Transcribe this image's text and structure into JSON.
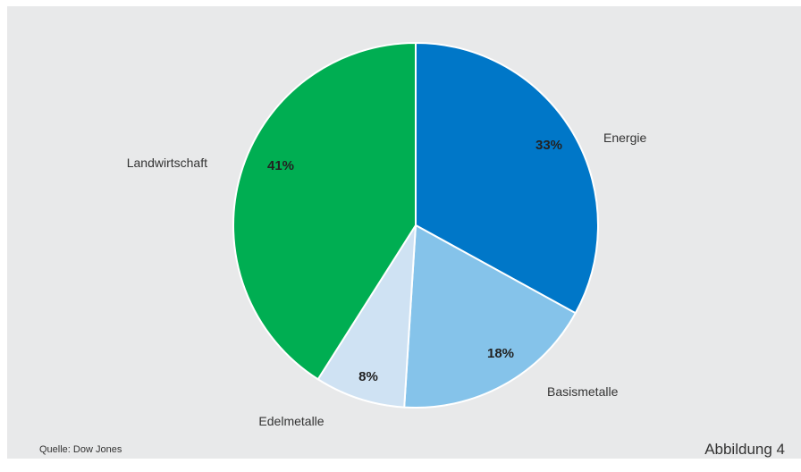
{
  "chart_data": {
    "type": "pie",
    "slices": [
      {
        "label": "Energie",
        "value": 33,
        "value_label": "33%",
        "color": "#0077c8"
      },
      {
        "label": "Basismetalle",
        "value": 18,
        "value_label": "18%",
        "color": "#85c3ea"
      },
      {
        "label": "Edelmetalle",
        "value": 8,
        "value_label": "8%",
        "color": "#cfe2f3"
      },
      {
        "label": "Landwirtschaft",
        "value": 41,
        "value_label": "41%",
        "color": "#00ae52"
      }
    ],
    "start": "12 o'clock",
    "direction": "clockwise",
    "labels": "outside, percentages inside"
  },
  "footer": {
    "source": "Quelle: Dow Jones",
    "figure_label": "Abbildung 4"
  },
  "colors": {
    "background": "#e8e9ea",
    "text": "#333333"
  }
}
